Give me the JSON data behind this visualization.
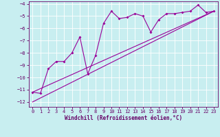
{
  "xlabel": "Windchill (Refroidissement éolien,°C)",
  "bg_color": "#c8eef0",
  "grid_color": "#ffffff",
  "line_color": "#990099",
  "xlim": [
    -0.5,
    23.5
  ],
  "ylim": [
    -12.4,
    -3.8
  ],
  "xticks": [
    0,
    1,
    2,
    3,
    4,
    5,
    6,
    7,
    8,
    9,
    10,
    11,
    12,
    13,
    14,
    15,
    16,
    17,
    18,
    19,
    20,
    21,
    22,
    23
  ],
  "yticks": [
    -12,
    -11,
    -10,
    -9,
    -8,
    -7,
    -6,
    -5,
    -4
  ],
  "line1_x": [
    0,
    1,
    2,
    3,
    4,
    5,
    6,
    7,
    8,
    9,
    10,
    11,
    12,
    13,
    14,
    15,
    16,
    17,
    18,
    19,
    20,
    21,
    22,
    23
  ],
  "line1_y": [
    -11.2,
    -11.3,
    -9.3,
    -8.7,
    -8.7,
    -8.0,
    -6.7,
    -9.7,
    -8.2,
    -5.6,
    -4.6,
    -5.2,
    -5.1,
    -4.8,
    -5.0,
    -6.3,
    -5.3,
    -4.8,
    -4.8,
    -4.7,
    -4.6,
    -4.1,
    -4.7,
    -4.6
  ],
  "trend1_x": [
    0,
    23
  ],
  "trend1_y": [
    -11.2,
    -4.6
  ],
  "trend2_x": [
    0,
    23
  ],
  "trend2_y": [
    -12.0,
    -4.6
  ]
}
